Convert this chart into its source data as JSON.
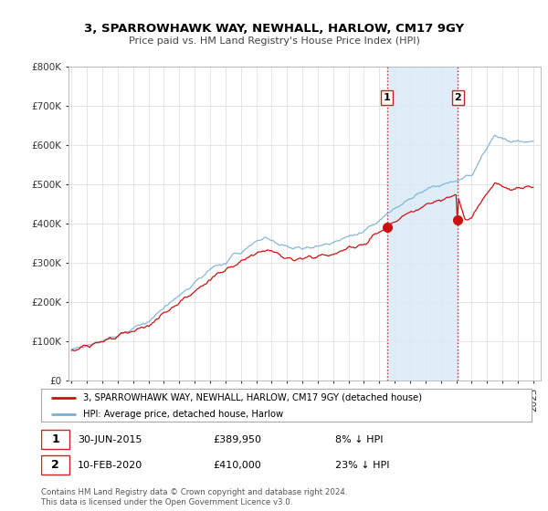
{
  "title": "3, SPARROWHAWK WAY, NEWHALL, HARLOW, CM17 9GY",
  "subtitle": "Price paid vs. HM Land Registry's House Price Index (HPI)",
  "background_color": "#ffffff",
  "grid_color": "#e0e0e0",
  "shade_color": "#daeaf7",
  "hpi_line_color": "#7ab0d4",
  "property_line_color": "#cc1111",
  "transaction1_x": 2015.5,
  "transaction1_y": 389950,
  "transaction2_x": 2020.1,
  "transaction2_y": 410000,
  "vline_color": "#cc2222",
  "legend_entry1": "3, SPARROWHAWK WAY, NEWHALL, HARLOW, CM17 9GY (detached house)",
  "legend_entry2": "HPI: Average price, detached house, Harlow",
  "ann1_date": "30-JUN-2015",
  "ann1_price": "£389,950",
  "ann1_hpi": "8% ↓ HPI",
  "ann2_date": "10-FEB-2020",
  "ann2_price": "£410,000",
  "ann2_hpi": "23% ↓ HPI",
  "footnote1": "Contains HM Land Registry data © Crown copyright and database right 2024.",
  "footnote2": "This data is licensed under the Open Government Licence v3.0.",
  "ylim": [
    0,
    800000
  ],
  "xlim_start": 1994.8,
  "xlim_end": 2025.5
}
